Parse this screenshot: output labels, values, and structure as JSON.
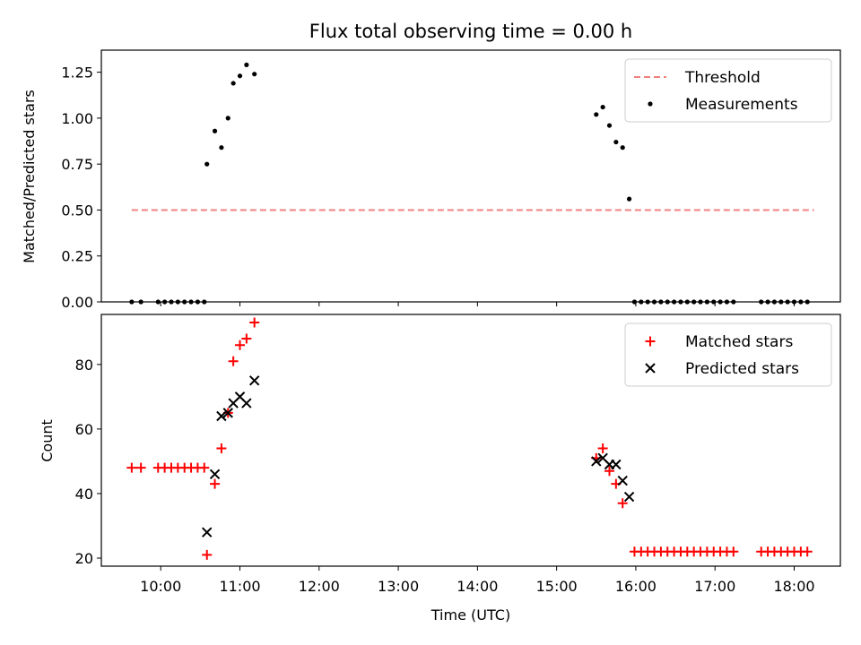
{
  "chart_data": [
    {
      "type": "scatter",
      "title": "Flux total observing time = 0.00 h",
      "xlabel": "",
      "ylabel": "Matched/Predicted stars",
      "xlim": [
        "09:15",
        "18:35"
      ],
      "ylim": [
        0,
        1.37
      ],
      "grid": false,
      "legend_position": "top-right",
      "yticks": [
        {
          "value": 0.0,
          "label": "0.00"
        },
        {
          "value": 0.25,
          "label": "0.25"
        },
        {
          "value": 0.5,
          "label": "0.50"
        },
        {
          "value": 0.75,
          "label": "0.75"
        },
        {
          "value": 1.0,
          "label": "1.00"
        },
        {
          "value": 1.25,
          "label": "1.25"
        }
      ],
      "xticks": [
        "10:00",
        "11:00",
        "12:00",
        "13:00",
        "14:00",
        "15:00",
        "16:00",
        "17:00",
        "18:00"
      ],
      "show_xtick_labels": false,
      "series": [
        {
          "name": "Threshold",
          "kind": "line",
          "style": "dashed",
          "color": "#f08080",
          "points": [
            {
              "x": "09:38",
              "y": 0.5
            },
            {
              "x": "18:15",
              "y": 0.5
            }
          ]
        },
        {
          "name": "Measurements",
          "kind": "dot",
          "color": "#000000",
          "points": [
            {
              "x": "09:38",
              "y": 0.0
            },
            {
              "x": "09:45",
              "y": 0.0
            },
            {
              "x": "09:58",
              "y": 0.0
            },
            {
              "x": "10:03",
              "y": 0.0
            },
            {
              "x": "10:08",
              "y": 0.0
            },
            {
              "x": "10:13",
              "y": 0.0
            },
            {
              "x": "10:18",
              "y": 0.0
            },
            {
              "x": "10:23",
              "y": 0.0
            },
            {
              "x": "10:28",
              "y": 0.0
            },
            {
              "x": "10:33",
              "y": 0.0
            },
            {
              "x": "10:35",
              "y": 0.75
            },
            {
              "x": "10:41",
              "y": 0.93
            },
            {
              "x": "10:46",
              "y": 0.84
            },
            {
              "x": "10:51",
              "y": 1.0
            },
            {
              "x": "10:55",
              "y": 1.19
            },
            {
              "x": "11:00",
              "y": 1.23
            },
            {
              "x": "11:05",
              "y": 1.29
            },
            {
              "x": "11:11",
              "y": 1.24
            },
            {
              "x": "15:30",
              "y": 1.02
            },
            {
              "x": "15:35",
              "y": 1.06
            },
            {
              "x": "15:40",
              "y": 0.96
            },
            {
              "x": "15:45",
              "y": 0.87
            },
            {
              "x": "15:50",
              "y": 0.84
            },
            {
              "x": "15:55",
              "y": 0.56
            },
            {
              "x": "15:59",
              "y": 0.0
            },
            {
              "x": "16:04",
              "y": 0.0
            },
            {
              "x": "16:09",
              "y": 0.0
            },
            {
              "x": "16:14",
              "y": 0.0
            },
            {
              "x": "16:19",
              "y": 0.0
            },
            {
              "x": "16:24",
              "y": 0.0
            },
            {
              "x": "16:29",
              "y": 0.0
            },
            {
              "x": "16:34",
              "y": 0.0
            },
            {
              "x": "16:39",
              "y": 0.0
            },
            {
              "x": "16:44",
              "y": 0.0
            },
            {
              "x": "16:49",
              "y": 0.0
            },
            {
              "x": "16:54",
              "y": 0.0
            },
            {
              "x": "16:59",
              "y": 0.0
            },
            {
              "x": "17:04",
              "y": 0.0
            },
            {
              "x": "17:09",
              "y": 0.0
            },
            {
              "x": "17:14",
              "y": 0.0
            },
            {
              "x": "17:35",
              "y": 0.0
            },
            {
              "x": "17:40",
              "y": 0.0
            },
            {
              "x": "17:45",
              "y": 0.0
            },
            {
              "x": "17:50",
              "y": 0.0
            },
            {
              "x": "17:55",
              "y": 0.0
            },
            {
              "x": "18:00",
              "y": 0.0
            },
            {
              "x": "18:05",
              "y": 0.0
            },
            {
              "x": "18:10",
              "y": 0.0
            }
          ]
        }
      ]
    },
    {
      "type": "scatter",
      "title": "",
      "xlabel": "Time (UTC)",
      "ylabel": "Count",
      "xlim": [
        "09:15",
        "18:35"
      ],
      "ylim": [
        17.5,
        95.5
      ],
      "grid": false,
      "legend_position": "top-right",
      "yticks": [
        {
          "value": 20,
          "label": "20"
        },
        {
          "value": 40,
          "label": "40"
        },
        {
          "value": 60,
          "label": "60"
        },
        {
          "value": 80,
          "label": "80"
        }
      ],
      "xticks": [
        "10:00",
        "11:00",
        "12:00",
        "13:00",
        "14:00",
        "15:00",
        "16:00",
        "17:00",
        "18:00"
      ],
      "show_xtick_labels": true,
      "series": [
        {
          "name": "Matched stars",
          "kind": "plus",
          "color": "#ff0000",
          "points": [
            {
              "x": "09:38",
              "y": 48
            },
            {
              "x": "09:45",
              "y": 48
            },
            {
              "x": "09:58",
              "y": 48
            },
            {
              "x": "10:03",
              "y": 48
            },
            {
              "x": "10:08",
              "y": 48
            },
            {
              "x": "10:13",
              "y": 48
            },
            {
              "x": "10:18",
              "y": 48
            },
            {
              "x": "10:23",
              "y": 48
            },
            {
              "x": "10:28",
              "y": 48
            },
            {
              "x": "10:33",
              "y": 48
            },
            {
              "x": "10:35",
              "y": 21
            },
            {
              "x": "10:41",
              "y": 43
            },
            {
              "x": "10:46",
              "y": 54
            },
            {
              "x": "10:51",
              "y": 65
            },
            {
              "x": "10:55",
              "y": 81
            },
            {
              "x": "11:00",
              "y": 86
            },
            {
              "x": "11:05",
              "y": 88
            },
            {
              "x": "11:11",
              "y": 93
            },
            {
              "x": "15:30",
              "y": 51
            },
            {
              "x": "15:35",
              "y": 54
            },
            {
              "x": "15:40",
              "y": 47
            },
            {
              "x": "15:45",
              "y": 43
            },
            {
              "x": "15:50",
              "y": 37
            },
            {
              "x": "15:59",
              "y": 22
            },
            {
              "x": "16:04",
              "y": 22
            },
            {
              "x": "16:09",
              "y": 22
            },
            {
              "x": "16:14",
              "y": 22
            },
            {
              "x": "16:19",
              "y": 22
            },
            {
              "x": "16:24",
              "y": 22
            },
            {
              "x": "16:29",
              "y": 22
            },
            {
              "x": "16:34",
              "y": 22
            },
            {
              "x": "16:39",
              "y": 22
            },
            {
              "x": "16:44",
              "y": 22
            },
            {
              "x": "16:49",
              "y": 22
            },
            {
              "x": "16:54",
              "y": 22
            },
            {
              "x": "16:59",
              "y": 22
            },
            {
              "x": "17:04",
              "y": 22
            },
            {
              "x": "17:09",
              "y": 22
            },
            {
              "x": "17:14",
              "y": 22
            },
            {
              "x": "17:35",
              "y": 22
            },
            {
              "x": "17:40",
              "y": 22
            },
            {
              "x": "17:45",
              "y": 22
            },
            {
              "x": "17:50",
              "y": 22
            },
            {
              "x": "17:55",
              "y": 22
            },
            {
              "x": "18:00",
              "y": 22
            },
            {
              "x": "18:05",
              "y": 22
            },
            {
              "x": "18:10",
              "y": 22
            }
          ]
        },
        {
          "name": "Predicted stars",
          "kind": "x",
          "color": "#000000",
          "points": [
            {
              "x": "10:35",
              "y": 28
            },
            {
              "x": "10:41",
              "y": 46
            },
            {
              "x": "10:46",
              "y": 64
            },
            {
              "x": "10:51",
              "y": 65
            },
            {
              "x": "10:55",
              "y": 68
            },
            {
              "x": "11:00",
              "y": 70
            },
            {
              "x": "11:05",
              "y": 68
            },
            {
              "x": "11:11",
              "y": 75
            },
            {
              "x": "15:30",
              "y": 50
            },
            {
              "x": "15:35",
              "y": 51
            },
            {
              "x": "15:40",
              "y": 49
            },
            {
              "x": "15:45",
              "y": 49
            },
            {
              "x": "15:50",
              "y": 44
            },
            {
              "x": "15:55",
              "y": 39
            }
          ]
        }
      ]
    }
  ]
}
